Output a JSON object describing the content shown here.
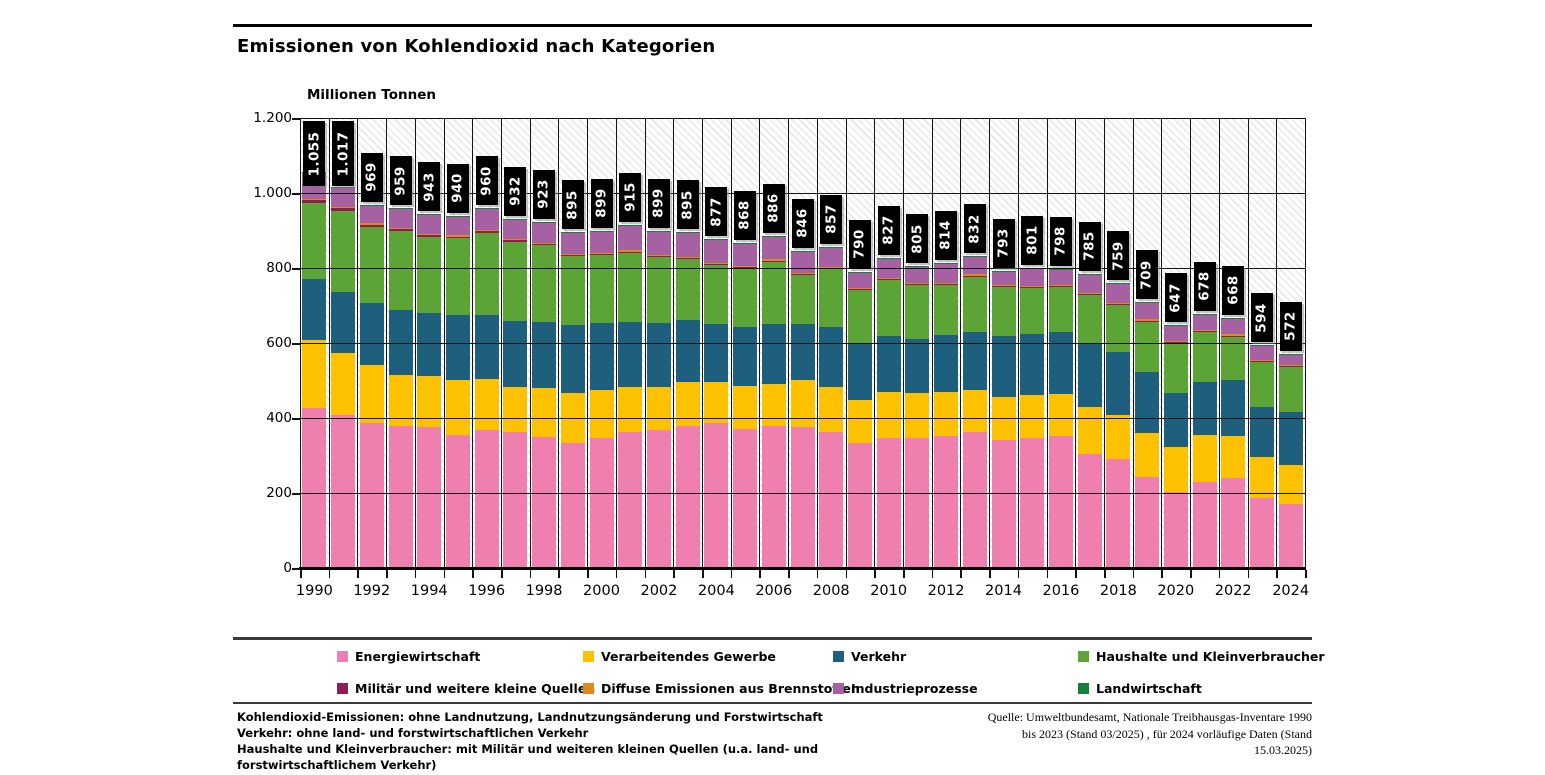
{
  "chart_data": {
    "type": "bar",
    "stacked": true,
    "title": "Emissionen von Kohlendioxid nach Kategorien",
    "ylabel": "Millionen Tonnen",
    "xlabel": "",
    "ylim": [
      0,
      1200
    ],
    "grid": true,
    "legend_position": "bottom",
    "categories": [
      1990,
      1991,
      1992,
      1993,
      1994,
      1995,
      1996,
      1997,
      1998,
      1999,
      2000,
      2001,
      2002,
      2003,
      2004,
      2005,
      2006,
      2007,
      2008,
      2009,
      2010,
      2011,
      2012,
      2013,
      2014,
      2015,
      2016,
      2017,
      2018,
      2019,
      2020,
      2021,
      2022,
      2023,
      2024
    ],
    "x_tick_labels": [
      "1990",
      "1992",
      "1994",
      "1996",
      "1998",
      "2000",
      "2002",
      "2004",
      "2006",
      "2008",
      "2010",
      "2012",
      "2014",
      "2016",
      "2018",
      "2020",
      "2022",
      "2024"
    ],
    "y_tick_labels": [
      "0",
      "200",
      "400",
      "600",
      "800",
      "1.000",
      "1.200"
    ],
    "totals": [
      1055,
      1017,
      969,
      959,
      943,
      940,
      960,
      932,
      923,
      895,
      899,
      915,
      899,
      895,
      877,
      868,
      886,
      846,
      857,
      790,
      827,
      805,
      814,
      832,
      793,
      801,
      798,
      785,
      759,
      709,
      647,
      678,
      668,
      594,
      572
    ],
    "total_labels": [
      "1.055",
      "1.017",
      "969",
      "959",
      "943",
      "940",
      "960",
      "932",
      "923",
      "895",
      "899",
      "915",
      "899",
      "895",
      "877",
      "868",
      "886",
      "846",
      "857",
      "790",
      "827",
      "805",
      "814",
      "832",
      "793",
      "801",
      "798",
      "785",
      "759",
      "709",
      "647",
      "678",
      "668",
      "594",
      "572"
    ],
    "series": [
      {
        "name": "Energiewirtschaft",
        "slug": "energiewirtschaft",
        "color": "#ef7fae",
        "values": [
          427,
          408,
          386,
          380,
          377,
          355,
          368,
          363,
          350,
          334,
          346,
          364,
          368,
          379,
          386,
          372,
          379,
          377,
          364,
          333,
          346,
          348,
          351,
          364,
          341,
          348,
          351,
          305,
          291,
          244,
          204,
          230,
          239,
          186,
          172
        ]
      },
      {
        "name": "Verarbeitendes Gewerbe",
        "slug": "verarbeitendes-gewerbe",
        "color": "#fcc200",
        "values": [
          181,
          165,
          155,
          135,
          135,
          146,
          135,
          120,
          129,
          134,
          128,
          120,
          115,
          116,
          109,
          114,
          113,
          124,
          120,
          115,
          124,
          120,
          119,
          110,
          116,
          113,
          112,
          125,
          117,
          115,
          119,
          125,
          113,
          111,
          103
        ]
      },
      {
        "name": "Verkehr",
        "slug": "verkehr",
        "color": "#1e5f7e",
        "values": [
          163,
          164,
          165,
          173,
          167,
          174,
          172,
          177,
          177,
          181,
          180,
          172,
          171,
          166,
          156,
          157,
          159,
          151,
          159,
          151,
          150,
          144,
          151,
          156,
          162,
          163,
          167,
          169,
          167,
          165,
          143,
          142,
          149,
          133,
          142
        ]
      },
      {
        "name": "Haushalte und Kleinverbraucher",
        "slug": "haushalte-und-kleinverbraucher",
        "color": "#5ca436",
        "values": [
          203,
          216,
          204,
          210,
          205,
          204,
          218,
          210,
          205,
          182,
          181,
          185,
          176,
          163,
          157,
          157,
          166,
          129,
          154,
          143,
          148,
          143,
          134,
          147,
          130,
          122,
          120,
          129,
          126,
          133,
          133,
          133,
          116,
          120,
          118
        ]
      },
      {
        "name": "Militär und weitere kleine Quellen",
        "slug": "militaer-und-weitere-kleine-quellen",
        "color": "#8e1d50",
        "values": [
          7,
          7,
          6,
          6,
          5,
          5,
          5,
          4,
          4,
          4,
          3,
          3,
          3,
          3,
          3,
          3,
          3,
          3,
          3,
          3,
          3,
          3,
          3,
          3,
          3,
          3,
          3,
          3,
          3,
          3,
          3,
          3,
          3,
          3,
          3
        ]
      },
      {
        "name": "Diffuse Emissionen aus Brennstoffen",
        "slug": "diffuse-emissionen-aus-brennstoffen",
        "color": "#de8821",
        "values": [
          3,
          3,
          3,
          3,
          3,
          3,
          3,
          3,
          3,
          3,
          3,
          3,
          3,
          3,
          3,
          3,
          3,
          3,
          3,
          3,
          3,
          3,
          3,
          3,
          3,
          3,
          3,
          3,
          3,
          3,
          3,
          3,
          3,
          3,
          3
        ]
      },
      {
        "name": "Industrieprozesse",
        "slug": "industrieprozesse",
        "color": "#a661a3",
        "values": [
          69,
          52,
          48,
          50,
          49,
          51,
          57,
          53,
          53,
          55,
          56,
          66,
          61,
          63,
          61,
          60,
          61,
          57,
          52,
          40,
          51,
          42,
          51,
          47,
          36,
          47,
          40,
          49,
          50,
          44,
          40,
          40,
          43,
          36,
          29
        ]
      },
      {
        "name": "Landwirtschaft",
        "slug": "landwirtschaft",
        "color": "#14803c",
        "values": [
          2,
          2,
          2,
          2,
          2,
          2,
          2,
          2,
          2,
          2,
          2,
          2,
          2,
          2,
          2,
          2,
          2,
          2,
          2,
          2,
          2,
          2,
          2,
          2,
          2,
          2,
          2,
          2,
          2,
          2,
          2,
          2,
          2,
          2,
          2
        ]
      }
    ]
  },
  "footnotes": {
    "lines": [
      "Kohlendioxid-Emissionen: ohne Landnutzung, Landnutzungsänderung und Forstwirtschaft",
      "Verkehr: ohne land- und forstwirtschaftlichen Verkehr",
      "Haushalte und Kleinverbraucher: mit Militär und weiteren kleinen Quellen (u.a. land- und",
      "forstwirtschaftlichem Verkehr)"
    ]
  },
  "source": {
    "lines": [
      "Quelle: Umweltbundesamt, Nationale Treibhausgas-Inventare 1990",
      "bis 2023 (Stand 03/2025) , für 2024 vorläufige Daten (Stand",
      "15.03.2025)"
    ]
  }
}
